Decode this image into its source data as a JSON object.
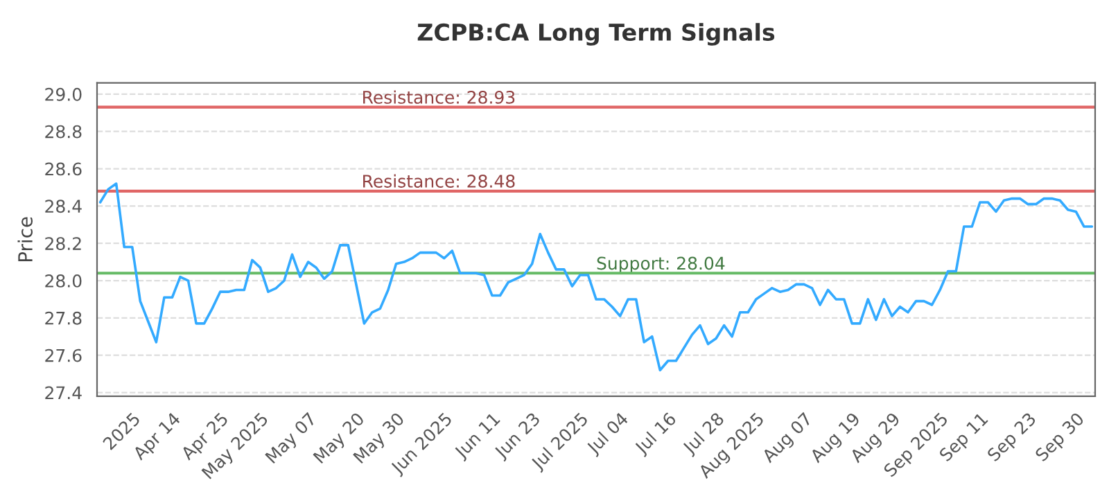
{
  "chart_data": {
    "type": "line",
    "title": "ZCPB:CA Long Term Signals",
    "ylabel": "Price",
    "categories": [
      null,
      null,
      null,
      null,
      "2025",
      null,
      null,
      null,
      null,
      "Apr 14",
      null,
      null,
      null,
      null,
      null,
      "Apr 25",
      null,
      null,
      null,
      null,
      "May 2025",
      null,
      null,
      null,
      null,
      null,
      "May 07",
      null,
      null,
      null,
      null,
      null,
      "May 20",
      null,
      null,
      null,
      null,
      "May 30",
      null,
      null,
      null,
      null,
      null,
      "Jun 2025",
      null,
      null,
      null,
      null,
      null,
      "Jun 11",
      null,
      null,
      null,
      null,
      "Jun 23",
      null,
      null,
      null,
      null,
      null,
      "Jul 2025",
      null,
      null,
      null,
      null,
      "Jul 04",
      null,
      null,
      null,
      null,
      null,
      "Jul 16",
      null,
      null,
      null,
      null,
      null,
      "Jul 28",
      null,
      null,
      null,
      null,
      "Aug 2025",
      null,
      null,
      null,
      null,
      null,
      "Aug 07",
      null,
      null,
      null,
      null,
      null,
      "Aug 19",
      null,
      null,
      null,
      null,
      "Aug 29",
      null,
      null,
      null,
      null,
      null,
      "Sep 2025",
      null,
      null,
      null,
      null,
      "Sep 11",
      null,
      null,
      null,
      null,
      null,
      "Sep 23",
      null,
      null,
      null,
      null,
      null,
      "Sep 30",
      null,
      null
    ],
    "series": [
      {
        "color": "#33aaff",
        "values": [
          28.42,
          28.49,
          28.52,
          28.18,
          28.18,
          27.89,
          27.78,
          27.67,
          27.91,
          27.91,
          28.02,
          28.0,
          27.77,
          27.77,
          27.85,
          27.94,
          27.94,
          27.95,
          27.95,
          28.11,
          28.07,
          27.94,
          27.96,
          28.0,
          28.14,
          28.02,
          28.1,
          28.07,
          28.01,
          28.05,
          28.19,
          28.19,
          27.98,
          27.77,
          27.83,
          27.85,
          27.95,
          28.09,
          28.1,
          28.12,
          28.15,
          28.15,
          28.15,
          28.12,
          28.16,
          28.04,
          28.04,
          28.04,
          28.03,
          27.92,
          27.92,
          27.99,
          28.01,
          28.03,
          28.09,
          28.25,
          28.15,
          28.06,
          28.06,
          27.97,
          28.03,
          28.03,
          27.9,
          27.9,
          27.86,
          27.81,
          27.9,
          27.9,
          27.67,
          27.7,
          27.52,
          27.57,
          27.57,
          27.64,
          27.71,
          27.76,
          27.66,
          27.69,
          27.76,
          27.7,
          27.83,
          27.83,
          27.9,
          27.93,
          27.96,
          27.94,
          27.95,
          27.98,
          27.98,
          27.96,
          27.87,
          27.95,
          27.9,
          27.9,
          27.77,
          27.77,
          27.9,
          27.79,
          27.9,
          27.81,
          27.86,
          27.83,
          27.89,
          27.89,
          27.87,
          27.95,
          28.05,
          28.05,
          28.29,
          28.29,
          28.42,
          28.42,
          28.37,
          28.43,
          28.44,
          28.44,
          28.41,
          28.41,
          28.44,
          28.44,
          28.43,
          28.38,
          28.37,
          28.29,
          28.29
        ]
      }
    ],
    "ylim": [
      27.38,
      29.06
    ],
    "yticks": [
      {
        "value": 27.4,
        "label": "27.4"
      },
      {
        "value": 27.6,
        "label": "27.6"
      },
      {
        "value": 27.8,
        "label": "27.8"
      },
      {
        "value": 28.0,
        "label": "28.0"
      },
      {
        "value": 28.2,
        "label": "28.2"
      },
      {
        "value": 28.4,
        "label": "28.4"
      },
      {
        "value": 28.6,
        "label": "28.6"
      },
      {
        "value": 28.8,
        "label": "28.8"
      },
      {
        "value": 29.0,
        "label": "29.0"
      }
    ],
    "grid": "y",
    "marker": "none",
    "line_style": "solid",
    "ref_lines": [
      {
        "axis": "y",
        "value": 28.93,
        "label": "Resistance: 28.93",
        "color": "#e06666"
      },
      {
        "axis": "y",
        "value": 28.48,
        "label": "Resistance: 28.48",
        "color": "#e06666"
      },
      {
        "axis": "y",
        "value": 28.04,
        "label": "Support: 28.04",
        "color": "#66bb66"
      }
    ]
  }
}
